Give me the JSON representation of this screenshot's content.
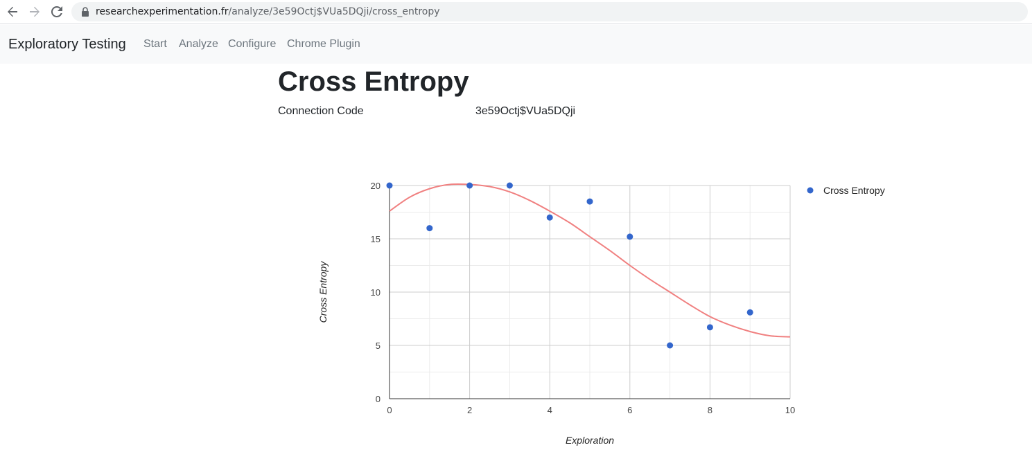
{
  "browser": {
    "url_host": "researchexperimentation.fr",
    "url_path": "/analyze/3e59Octj$VUa5DQji/cross_entropy"
  },
  "navbar": {
    "brand": "Exploratory Testing",
    "links": [
      "Start",
      "Analyze",
      "Configure",
      "Chrome Plugin"
    ]
  },
  "page": {
    "title": "Cross Entropy",
    "connection_label": "Connection Code",
    "connection_code": "3e59Octj$VUa5DQji"
  },
  "colors": {
    "points": "#3366cc",
    "trendline": "#f08080",
    "grid_major": "#cccccc",
    "grid_minor": "#ebebeb"
  },
  "chart_data": {
    "type": "scatter",
    "xlabel": "Exploration",
    "ylabel": "Cross Entropy",
    "xlim": [
      0,
      10
    ],
    "ylim": [
      0,
      20
    ],
    "x_ticks": [
      0,
      2,
      4,
      6,
      8,
      10
    ],
    "y_ticks": [
      0,
      5,
      10,
      15,
      20
    ],
    "grid": true,
    "legend_position": "right",
    "series": [
      {
        "name": "Cross Entropy",
        "x": [
          0,
          1,
          2,
          3,
          4,
          5,
          6,
          7,
          8,
          9
        ],
        "y": [
          20,
          16,
          20,
          20,
          17,
          18.5,
          15.2,
          5,
          6.7,
          8.1
        ]
      }
    ],
    "trendline": {
      "x": [
        0,
        0.5,
        1,
        1.5,
        2,
        2.5,
        3,
        3.5,
        4,
        4.5,
        5,
        5.5,
        6,
        6.5,
        7,
        7.5,
        8,
        8.5,
        9,
        9.5,
        10
      ],
      "y": [
        17.6,
        18.9,
        19.7,
        20.1,
        20.1,
        19.9,
        19.4,
        18.6,
        17.6,
        16.5,
        15.2,
        13.9,
        12.5,
        11.2,
        10.0,
        8.8,
        7.7,
        6.9,
        6.3,
        5.9,
        5.8
      ]
    }
  }
}
